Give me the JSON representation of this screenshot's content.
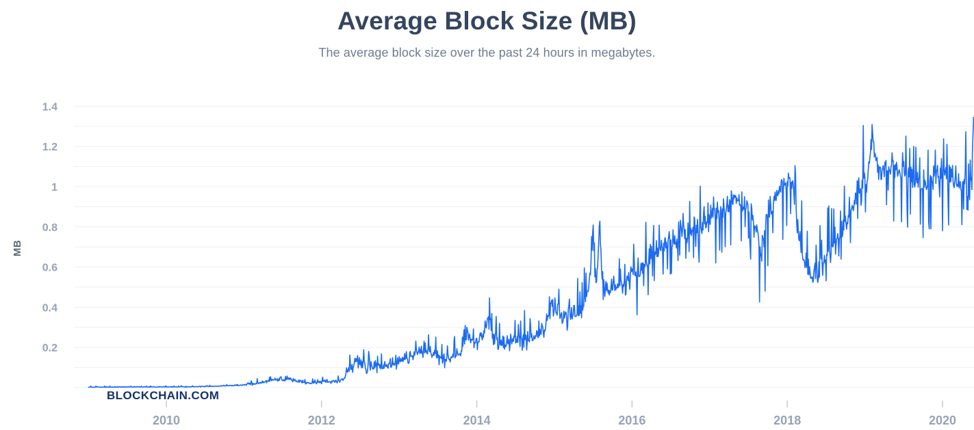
{
  "header": {
    "title": "Average Block Size (MB)",
    "subtitle": "The average block size over the past 24 hours in megabytes.",
    "watermark": "BLOCKCHAIN.COM"
  },
  "chart_data": {
    "type": "line",
    "title": "Average Block Size (MB)",
    "subtitle": "The average block size over the past 24 hours in megabytes.",
    "series_name": "Average block size over past 24 hours",
    "xlabel": "",
    "ylabel": "MB",
    "x_unit": "year",
    "y_unit": "MB",
    "legend": "none",
    "grid": "horizontal",
    "x_range": [
      2009.0,
      2020.41
    ],
    "y_range": [
      0,
      1.45
    ],
    "grid_step": 0.1,
    "y_gridline_max": 1.4,
    "y_tick_step": 0.2,
    "y_ticks": [
      "0.2",
      "0.4",
      "0.6",
      "0.8",
      "1",
      "1.2",
      "1.4"
    ],
    "x_ticks": [
      2010,
      2012,
      2014,
      2016,
      2018,
      2020
    ],
    "clamp": [
      0.0015,
      1.345
    ],
    "samples_per_year": 140,
    "noise_seed": 20090103,
    "anchors": [
      [
        2009.0,
        0.002
      ],
      [
        2009.3,
        0.002
      ],
      [
        2009.6,
        0.003
      ],
      [
        2010.0,
        0.003
      ],
      [
        2010.3,
        0.004
      ],
      [
        2010.6,
        0.006
      ],
      [
        2010.9,
        0.01
      ],
      [
        2011.1,
        0.015
      ],
      [
        2011.25,
        0.025
      ],
      [
        2011.4,
        0.04
      ],
      [
        2011.5,
        0.034
      ],
      [
        2011.58,
        0.042
      ],
      [
        2011.7,
        0.028
      ],
      [
        2011.85,
        0.02
      ],
      [
        2012.0,
        0.024
      ],
      [
        2012.15,
        0.03
      ],
      [
        2012.28,
        0.036
      ],
      [
        2012.33,
        0.08
      ],
      [
        2012.4,
        0.095
      ],
      [
        2012.46,
        0.14
      ],
      [
        2012.52,
        0.1
      ],
      [
        2012.6,
        0.09
      ],
      [
        2012.7,
        0.1
      ],
      [
        2012.8,
        0.095
      ],
      [
        2012.9,
        0.105
      ],
      [
        2013.0,
        0.125
      ],
      [
        2013.1,
        0.15
      ],
      [
        2013.2,
        0.165
      ],
      [
        2013.3,
        0.175
      ],
      [
        2013.4,
        0.17
      ],
      [
        2013.5,
        0.155
      ],
      [
        2013.58,
        0.135
      ],
      [
        2013.67,
        0.15
      ],
      [
        2013.75,
        0.155
      ],
      [
        2013.83,
        0.185
      ],
      [
        2013.88,
        0.29
      ],
      [
        2013.93,
        0.21
      ],
      [
        2014.0,
        0.23
      ],
      [
        2014.08,
        0.24
      ],
      [
        2014.15,
        0.35
      ],
      [
        2014.22,
        0.23
      ],
      [
        2014.3,
        0.215
      ],
      [
        2014.4,
        0.21
      ],
      [
        2014.5,
        0.225
      ],
      [
        2014.6,
        0.235
      ],
      [
        2014.7,
        0.235
      ],
      [
        2014.8,
        0.26
      ],
      [
        2014.88,
        0.29
      ],
      [
        2014.96,
        0.41
      ],
      [
        2015.05,
        0.36
      ],
      [
        2015.15,
        0.34
      ],
      [
        2015.25,
        0.35
      ],
      [
        2015.35,
        0.38
      ],
      [
        2015.45,
        0.5
      ],
      [
        2015.5,
        0.77
      ],
      [
        2015.54,
        0.5
      ],
      [
        2015.58,
        0.79
      ],
      [
        2015.63,
        0.52
      ],
      [
        2015.7,
        0.47
      ],
      [
        2015.8,
        0.5
      ],
      [
        2015.9,
        0.53
      ],
      [
        2016.0,
        0.58
      ],
      [
        2016.1,
        0.56
      ],
      [
        2016.2,
        0.63
      ],
      [
        2016.3,
        0.68
      ],
      [
        2016.4,
        0.71
      ],
      [
        2016.5,
        0.74
      ],
      [
        2016.6,
        0.72
      ],
      [
        2016.7,
        0.76
      ],
      [
        2016.8,
        0.79
      ],
      [
        2016.9,
        0.81
      ],
      [
        2017.0,
        0.85
      ],
      [
        2017.1,
        0.89
      ],
      [
        2017.2,
        0.92
      ],
      [
        2017.3,
        0.94
      ],
      [
        2017.42,
        0.95
      ],
      [
        2017.52,
        0.92
      ],
      [
        2017.6,
        0.82
      ],
      [
        2017.67,
        0.68
      ],
      [
        2017.74,
        0.88
      ],
      [
        2017.82,
        0.96
      ],
      [
        2017.9,
        1.0
      ],
      [
        2018.0,
        1.04
      ],
      [
        2018.06,
        1.05
      ],
      [
        2018.13,
        0.78
      ],
      [
        2018.2,
        0.64
      ],
      [
        2018.3,
        0.56
      ],
      [
        2018.38,
        0.52
      ],
      [
        2018.46,
        0.62
      ],
      [
        2018.55,
        0.68
      ],
      [
        2018.65,
        0.74
      ],
      [
        2018.75,
        0.8
      ],
      [
        2018.85,
        0.92
      ],
      [
        2018.95,
        1.0
      ],
      [
        2019.05,
        1.12
      ],
      [
        2019.1,
        1.26
      ],
      [
        2019.16,
        1.08
      ],
      [
        2019.25,
        1.1
      ],
      [
        2019.35,
        1.13
      ],
      [
        2019.45,
        1.08
      ],
      [
        2019.55,
        1.12
      ],
      [
        2019.65,
        1.04
      ],
      [
        2019.75,
        1.0
      ],
      [
        2019.85,
        1.04
      ],
      [
        2019.95,
        1.08
      ],
      [
        2020.05,
        1.08
      ],
      [
        2020.15,
        1.04
      ],
      [
        2020.25,
        1.02
      ],
      [
        2020.33,
        1.1
      ],
      [
        2020.39,
        1.22
      ],
      [
        2020.41,
        1.33
      ]
    ],
    "noise_eras": [
      {
        "from": 2009.0,
        "up": 0.003,
        "down": 0.002
      },
      {
        "from": 2011.0,
        "up": 0.012,
        "down": 0.008
      },
      {
        "from": 2012.33,
        "up": 0.045,
        "down": 0.035
      },
      {
        "from": 2014.0,
        "up": 0.06,
        "down": 0.05
      },
      {
        "from": 2015.0,
        "up": 0.08,
        "down": 0.06
      },
      {
        "from": 2015.45,
        "up": 0.06,
        "down": 0.1
      },
      {
        "from": 2016.0,
        "up": 0.1,
        "down": 0.2
      },
      {
        "from": 2017.0,
        "up": 0.05,
        "down": 0.3
      },
      {
        "from": 2018.06,
        "up": 0.12,
        "down": 0.12
      },
      {
        "from": 2018.8,
        "up": 0.15,
        "down": 0.2
      },
      {
        "from": 2019.0,
        "up": 0.09,
        "down": 0.32
      },
      {
        "from": 2020.0,
        "up": 0.1,
        "down": 0.25
      }
    ],
    "theme": {
      "line_color": "#1c6bf2",
      "title_color": "#35455e",
      "subtitle_color": "#6e7b91",
      "tick_label_color": "#98a2b6",
      "axis_label_color": "#5b6678",
      "gridline_color": "#edeff7",
      "tick_mark_color": "#c3c9d6",
      "watermark_color": "#15316b",
      "background_color": "#ffffff"
    }
  }
}
